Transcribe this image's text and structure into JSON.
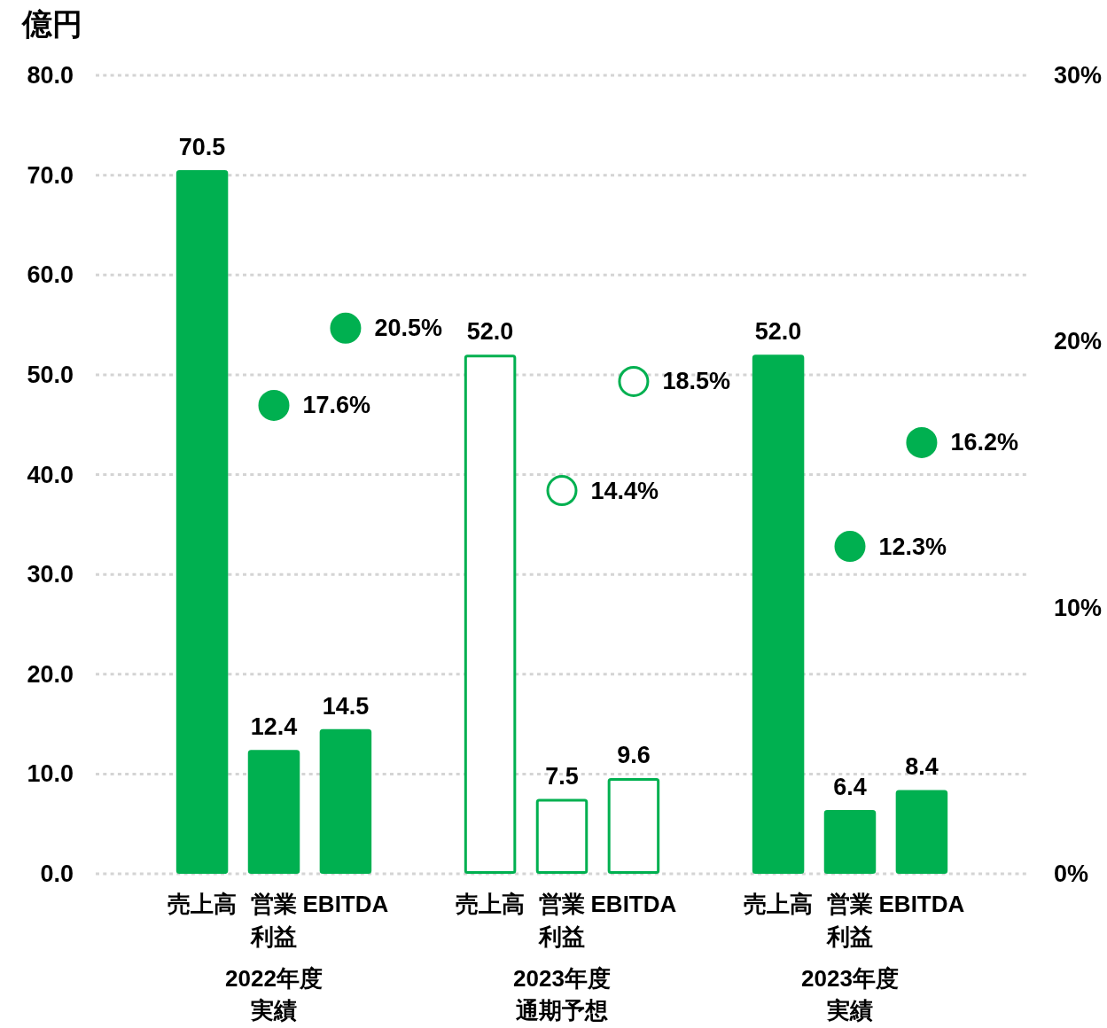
{
  "chart_data": {
    "type": "bar",
    "ylabel": "億円",
    "categories": [
      "売上高",
      "営業利益",
      "EBITDA",
      "売上高",
      "営業利益",
      "EBITDA",
      "売上高",
      "営業利益",
      "EBITDA"
    ],
    "annotations": [
      "2022年度実績",
      "2023年度通期予想",
      "2023年度実績"
    ],
    "series": [
      {
        "color": "#00b050",
        "colors": [
          "#00b050",
          "#00b050",
          "#00b050",
          "#ffffff",
          "#ffffff",
          "#ffffff",
          "#00b050",
          "#00b050",
          "#00b050"
        ],
        "values": [
          70.5,
          12.4,
          14.5,
          52.0,
          7.5,
          9.6,
          52.0,
          6.4,
          8.4
        ],
        "value_labels": [
          "70.5",
          "12.4",
          "14.5",
          "52.0",
          "7.5",
          "9.6",
          "52.0",
          "6.4",
          "8.4"
        ]
      },
      {
        "type": "scatter",
        "axis": "y2",
        "marker": "circle",
        "color": "#00b050",
        "colors": [
          null,
          "#00b050",
          "#00b050",
          null,
          "#ffffff",
          "#ffffff",
          null,
          "#00b050",
          "#00b050"
        ],
        "values": [
          null,
          17.6,
          20.5,
          null,
          14.4,
          18.5,
          null,
          12.3,
          16.2
        ],
        "value_labels": [
          null,
          "17.6%",
          "20.5%",
          null,
          "14.4%",
          "18.5%",
          null,
          "12.3%",
          "16.2%"
        ]
      }
    ],
    "ylim": [
      0,
      80
    ],
    "yticks": [
      {
        "value": 0,
        "label": "0.0"
      },
      {
        "value": 10,
        "label": "10.0"
      },
      {
        "value": 20,
        "label": "20.0"
      },
      {
        "value": 30,
        "label": "30.0"
      },
      {
        "value": 40,
        "label": "40.0"
      },
      {
        "value": 50,
        "label": "50.0"
      },
      {
        "value": 60,
        "label": "60.0"
      },
      {
        "value": 70,
        "label": "70.0"
      },
      {
        "value": 80,
        "label": "80.0"
      }
    ],
    "y2lim": [
      0,
      30
    ],
    "y2ticks": [
      {
        "value": 0,
        "label": "0%"
      },
      {
        "value": 10,
        "label": "10%"
      },
      {
        "value": 20,
        "label": "20%"
      },
      {
        "value": 30,
        "label": "30%"
      }
    ],
    "grid": "y"
  }
}
